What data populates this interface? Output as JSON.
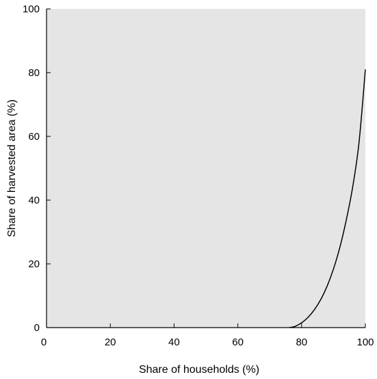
{
  "chart_data": {
    "type": "line",
    "title": "",
    "xlabel": "Share of households (%)",
    "ylabel": "Share of harvested area (%)",
    "xlim": [
      0,
      100
    ],
    "ylim": [
      0,
      100
    ],
    "xticks": [
      0,
      20,
      40,
      60,
      80,
      100
    ],
    "yticks": [
      0,
      20,
      40,
      60,
      80,
      100
    ],
    "x_tick_labels": [
      "0",
      "20",
      "40",
      "60",
      "80",
      "100"
    ],
    "y_tick_labels": [
      "0",
      "20",
      "40",
      "60",
      "80",
      "100"
    ],
    "grid": false,
    "legend": "none",
    "series": [
      {
        "x": [
          76.2,
          78,
          80,
          82,
          84,
          86,
          88,
          90,
          92,
          94,
          96,
          98,
          100
        ],
        "y": [
          0,
          0.4,
          1.5,
          3.2,
          5.6,
          8.8,
          13.0,
          18.4,
          25.2,
          33.7,
          44.0,
          58.0,
          81.0
        ]
      }
    ],
    "colors": {
      "plot_background": "#e5e5e5",
      "axes": "#000000",
      "line": "#000000"
    }
  }
}
